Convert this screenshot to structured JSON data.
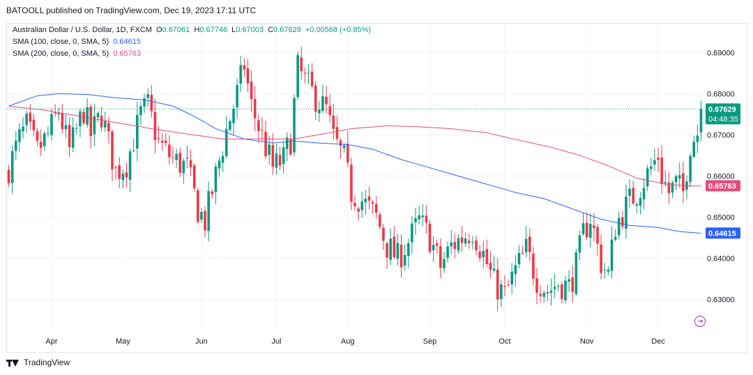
{
  "header": {
    "text": "BATOOLL published on TradingView.com, Dec 19, 2023 17:11 UTC"
  },
  "legend": {
    "symbol": "Australian Dollar / U.S. Dollar, 1D, FXCM",
    "o_label": "O",
    "o_value": "0.67061",
    "h_label": "H",
    "h_value": "0.67746",
    "l_label": "L",
    "l_value": "0.67003",
    "c_label": "C",
    "c_value": "0.67629",
    "change": "+0.00568 (+0.85%)",
    "sma100_label": "SMA (100, close, 0, SMA, 5)",
    "sma100_value": "0.64615",
    "sma200_label": "SMA (200, close, 0, SMA, 5)",
    "sma200_value": "0.65763"
  },
  "footer": {
    "brand": "TradingView"
  },
  "scroll_button": {
    "glyph": "⇥"
  },
  "chart_data": {
    "type": "candlestick",
    "symbol": "AUD/USD",
    "timeframe": "1D",
    "ylim": [
      0.6225,
      0.697
    ],
    "y_ticks": [
      0.63,
      0.64,
      0.65,
      0.66,
      0.67,
      0.68,
      0.69
    ],
    "y_tick_labels": [
      "0.63000",
      "0.64000",
      "0.65000",
      "0.66000",
      "0.67000",
      "0.68000",
      "0.69000"
    ],
    "x_ticks": [
      {
        "label": "Apr",
        "index": 12
      },
      {
        "label": "May",
        "index": 32
      },
      {
        "label": "Jun",
        "index": 54
      },
      {
        "label": "Jul",
        "index": 75
      },
      {
        "label": "Aug",
        "index": 95
      },
      {
        "label": "Sep",
        "index": 118
      },
      {
        "label": "Oct",
        "index": 139
      },
      {
        "label": "Nov",
        "index": 162
      },
      {
        "label": "Dec",
        "index": 182
      }
    ],
    "grid": true,
    "colors": {
      "up": "#089981",
      "down": "#f23645",
      "sma100": "#2962ff",
      "sma200": "#e04f7e",
      "grid": "#f0f3fa",
      "price_line": "#089981"
    },
    "current_price": {
      "value": 0.67629,
      "label": "0.67629",
      "countdown": "04:48:35",
      "color": "#089981"
    },
    "sma100_badge": {
      "value": 0.64615,
      "label": "0.64615",
      "color": "#2962ff"
    },
    "sma200_badge": {
      "value": 0.65763,
      "label": "0.65763",
      "color": "#e04f7e"
    },
    "close_anchors": [
      [
        0,
        0.662
      ],
      [
        3,
        0.669
      ],
      [
        5,
        0.672
      ],
      [
        8,
        0.666
      ],
      [
        11,
        0.67
      ],
      [
        14,
        0.676
      ],
      [
        17,
        0.666
      ],
      [
        21,
        0.676
      ],
      [
        23,
        0.67
      ],
      [
        26,
        0.675
      ],
      [
        30,
        0.661
      ],
      [
        33,
        0.663
      ],
      [
        37,
        0.675
      ],
      [
        39,
        0.677
      ],
      [
        42,
        0.668
      ],
      [
        46,
        0.664
      ],
      [
        50,
        0.662
      ],
      [
        53,
        0.652
      ],
      [
        55,
        0.649
      ],
      [
        58,
        0.66
      ],
      [
        61,
        0.671
      ],
      [
        64,
        0.68
      ],
      [
        66,
        0.687
      ],
      [
        68,
        0.677
      ],
      [
        70,
        0.672
      ],
      [
        72,
        0.667
      ],
      [
        74,
        0.662
      ],
      [
        77,
        0.664
      ],
      [
        79,
        0.669
      ],
      [
        81,
        0.686
      ],
      [
        83,
        0.683
      ],
      [
        86,
        0.679
      ],
      [
        89,
        0.676
      ],
      [
        91,
        0.669
      ],
      [
        94,
        0.664
      ],
      [
        96,
        0.656
      ],
      [
        99,
        0.654
      ],
      [
        103,
        0.65
      ],
      [
        106,
        0.643
      ],
      [
        109,
        0.64
      ],
      [
        112,
        0.644
      ],
      [
        115,
        0.649
      ],
      [
        118,
        0.645
      ],
      [
        121,
        0.638
      ],
      [
        124,
        0.643
      ],
      [
        127,
        0.645
      ],
      [
        130,
        0.647
      ],
      [
        133,
        0.641
      ],
      [
        136,
        0.634
      ],
      [
        139,
        0.631
      ],
      [
        142,
        0.637
      ],
      [
        145,
        0.642
      ],
      [
        148,
        0.635
      ],
      [
        151,
        0.632
      ],
      [
        154,
        0.634
      ],
      [
        157,
        0.633
      ],
      [
        159,
        0.638
      ],
      [
        161,
        0.646
      ],
      [
        163,
        0.65
      ],
      [
        166,
        0.639
      ],
      [
        168,
        0.636
      ],
      [
        170,
        0.648
      ],
      [
        172,
        0.651
      ],
      [
        174,
        0.654
      ],
      [
        176,
        0.656
      ],
      [
        178,
        0.659
      ],
      [
        180,
        0.662
      ],
      [
        182,
        0.665
      ],
      [
        183,
        0.66
      ],
      [
        185,
        0.656
      ],
      [
        187,
        0.658
      ],
      [
        189,
        0.656
      ],
      [
        191,
        0.668
      ],
      [
        193,
        0.6706
      ],
      [
        194,
        0.6763
      ]
    ],
    "sma100_anchors": [
      [
        0,
        0.677
      ],
      [
        8,
        0.6795
      ],
      [
        14,
        0.68
      ],
      [
        22,
        0.6798
      ],
      [
        30,
        0.679
      ],
      [
        38,
        0.6785
      ],
      [
        46,
        0.677
      ],
      [
        52,
        0.6745
      ],
      [
        58,
        0.6715
      ],
      [
        66,
        0.669
      ],
      [
        74,
        0.668
      ],
      [
        80,
        0.6685
      ],
      [
        87,
        0.668
      ],
      [
        92,
        0.6678
      ],
      [
        96,
        0.6675
      ],
      [
        102,
        0.6665
      ],
      [
        110,
        0.664
      ],
      [
        118,
        0.662
      ],
      [
        126,
        0.66
      ],
      [
        134,
        0.658
      ],
      [
        142,
        0.656
      ],
      [
        150,
        0.6545
      ],
      [
        158,
        0.652
      ],
      [
        166,
        0.6495
      ],
      [
        174,
        0.648
      ],
      [
        182,
        0.6475
      ],
      [
        188,
        0.6465
      ],
      [
        194,
        0.6461
      ]
    ],
    "sma200_anchors": [
      [
        0,
        0.677
      ],
      [
        10,
        0.676
      ],
      [
        20,
        0.6745
      ],
      [
        30,
        0.673
      ],
      [
        40,
        0.6715
      ],
      [
        50,
        0.6702
      ],
      [
        60,
        0.669
      ],
      [
        70,
        0.669
      ],
      [
        80,
        0.669
      ],
      [
        88,
        0.6702
      ],
      [
        96,
        0.6715
      ],
      [
        106,
        0.6722
      ],
      [
        114,
        0.672
      ],
      [
        124,
        0.6715
      ],
      [
        134,
        0.6705
      ],
      [
        144,
        0.6685
      ],
      [
        152,
        0.667
      ],
      [
        160,
        0.665
      ],
      [
        168,
        0.6625
      ],
      [
        176,
        0.6595
      ],
      [
        184,
        0.658
      ],
      [
        190,
        0.6576
      ],
      [
        194,
        0.6576
      ]
    ],
    "candle_count": 195
  }
}
